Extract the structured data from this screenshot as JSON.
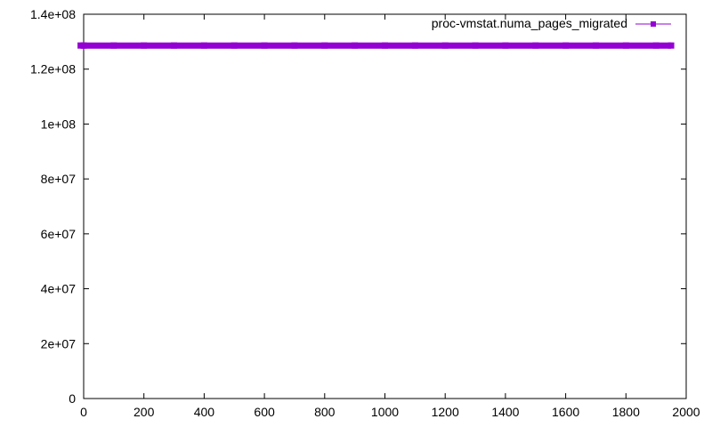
{
  "chart_data": {
    "type": "line",
    "title": "",
    "xlabel": "",
    "ylabel": "",
    "xlim": [
      0,
      2000
    ],
    "ylim": [
      0,
      140000000
    ],
    "x_ticks": [
      "0",
      "200",
      "400",
      "600",
      "800",
      "1000",
      "1200",
      "1400",
      "1600",
      "1800",
      "2000"
    ],
    "y_ticks": [
      "0",
      "2e+07",
      "4e+07",
      "6e+07",
      "8e+07",
      "1e+08",
      "1.2e+08",
      "1.4e+08"
    ],
    "grid": false,
    "legend_position": "top-right",
    "series": [
      {
        "name": "proc-vmstat.numa_pages_migrated",
        "color": "#9400d3",
        "marker": "square",
        "x": [
          -10,
          0,
          100,
          200,
          300,
          400,
          500,
          600,
          700,
          800,
          900,
          1000,
          1100,
          1200,
          1300,
          1400,
          1500,
          1600,
          1700,
          1800,
          1900,
          1950
        ],
        "y": [
          128600000,
          128600000,
          128600000,
          128600000,
          128600000,
          128600000,
          128600000,
          128600000,
          128600000,
          128600000,
          128600000,
          128600000,
          128600000,
          128600000,
          128600000,
          128600000,
          128600000,
          128600000,
          128600000,
          128600000,
          128600000,
          128600000
        ]
      }
    ]
  }
}
